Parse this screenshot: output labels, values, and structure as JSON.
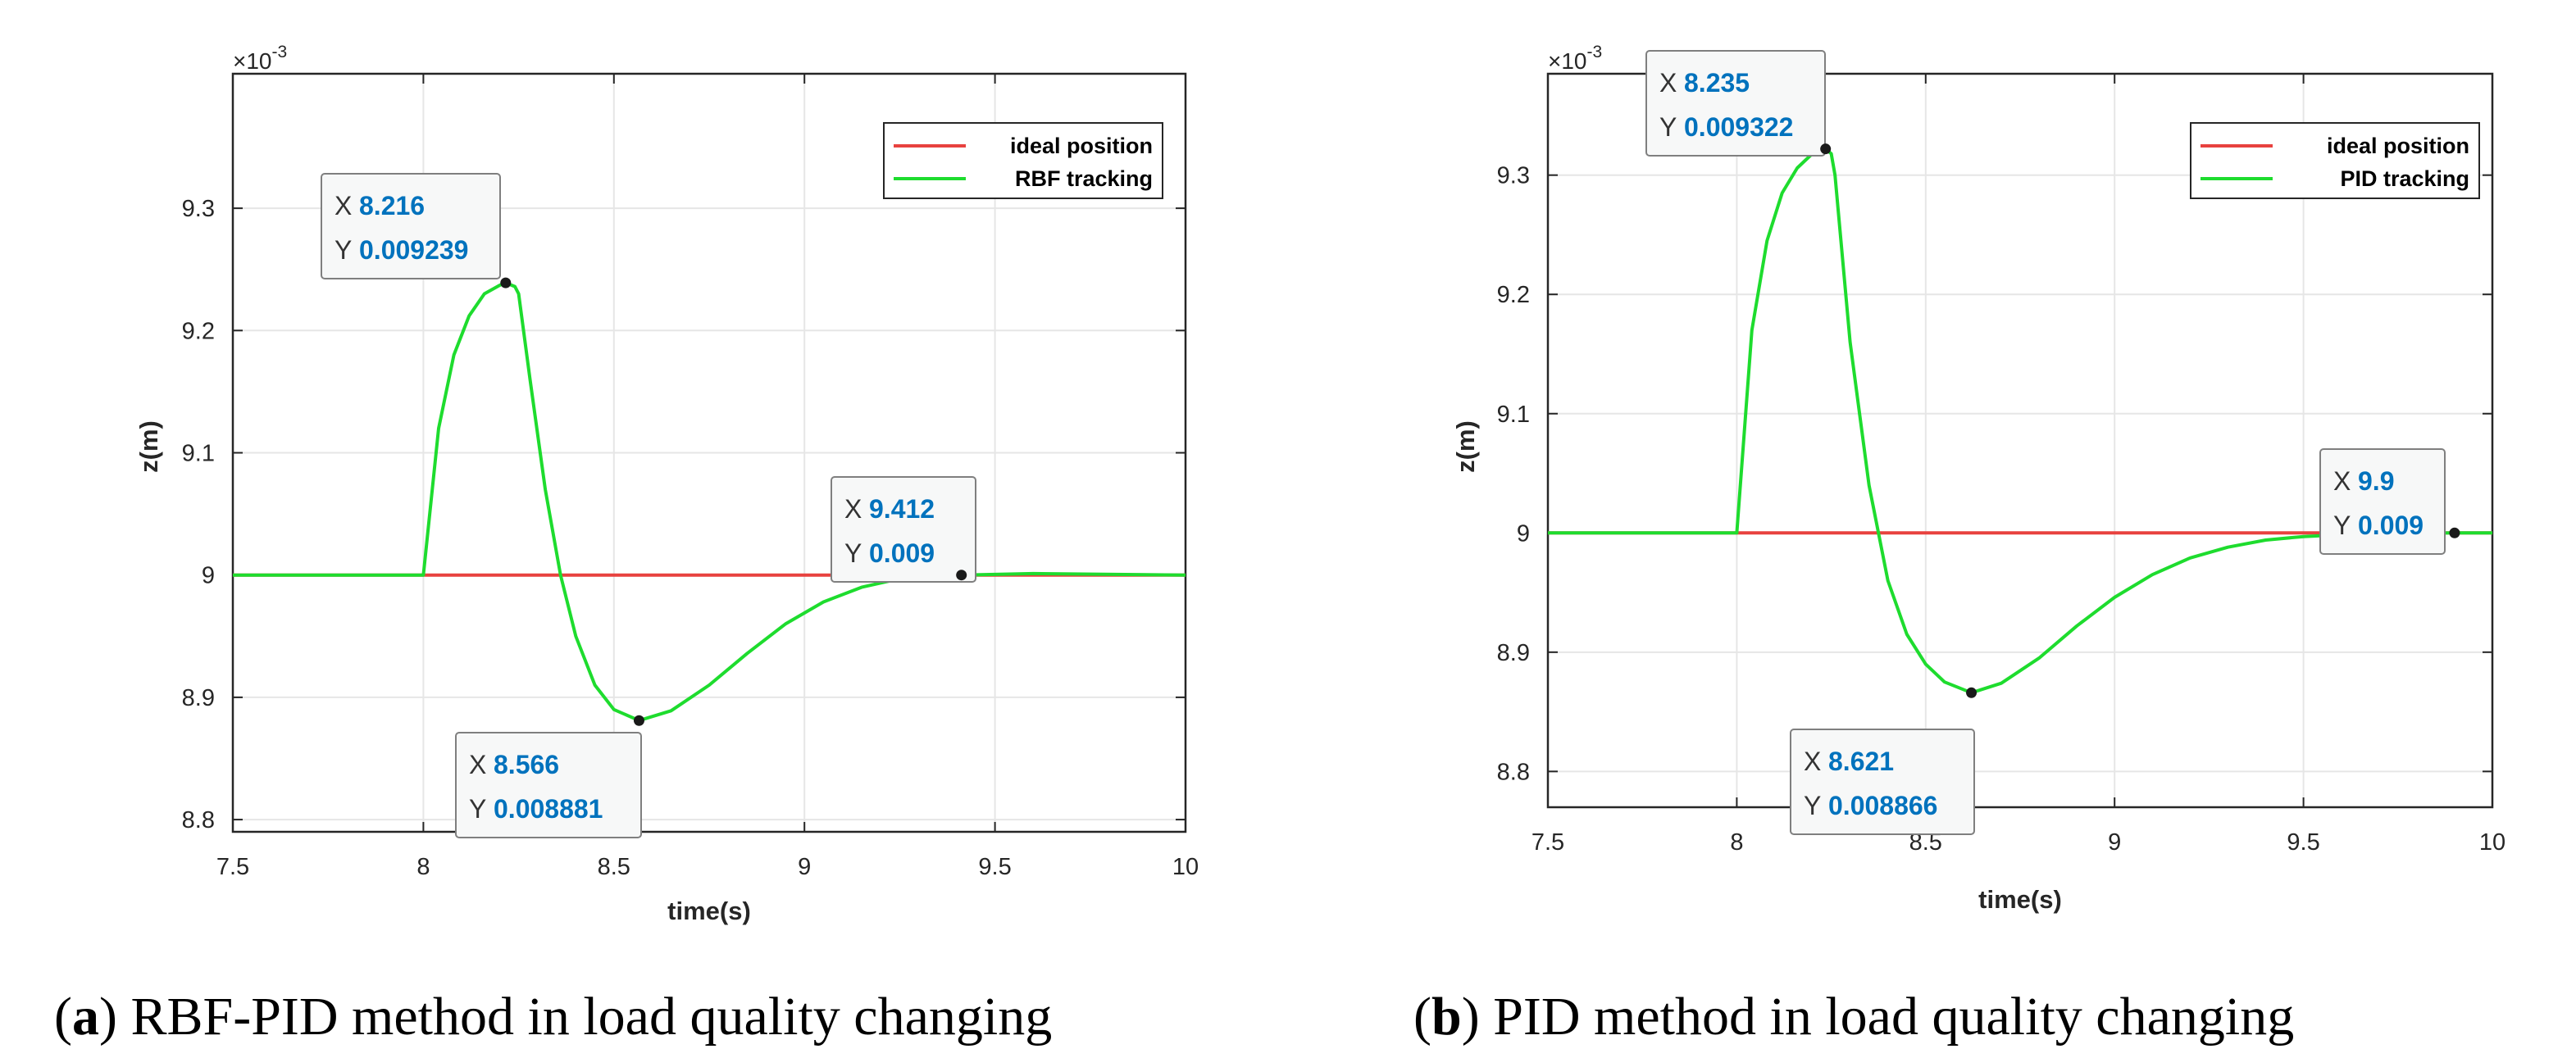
{
  "colors": {
    "ideal": "#e8423f",
    "tracking": "#1edc2e",
    "tip_value": "#0072bd",
    "grid": "#e6e6e6"
  },
  "chart_data": [
    {
      "type": "line",
      "panel": "a",
      "caption_letter": "(a)",
      "caption_text": " RBF-PID method in load quality changing",
      "xlabel": "time(s)",
      "ylabel": "z(m)",
      "exponent_label": "×10-3",
      "xlim": [
        7.5,
        10
      ],
      "ylim": [
        8.79,
        9.41
      ],
      "xticks": [
        7.5,
        8,
        8.5,
        9,
        9.5,
        10
      ],
      "xtick_labels": [
        "7.5",
        "8",
        "8.5",
        "9",
        "9.5",
        "10"
      ],
      "yticks": [
        8.8,
        8.9,
        9.0,
        9.1,
        9.2,
        9.3
      ],
      "ytick_labels": [
        "8.8",
        "8.9",
        "9",
        "9.1",
        "9.2",
        "9.3"
      ],
      "legend": {
        "placement": "top-right",
        "entries": [
          "ideal position",
          "RBF tracking"
        ]
      },
      "series": [
        {
          "name": "ideal position",
          "x": [
            7.5,
            10
          ],
          "y": [
            9.0,
            9.0
          ]
        },
        {
          "name": "RBF tracking",
          "x": [
            7.5,
            8.0,
            8.0,
            8.04,
            8.08,
            8.12,
            8.16,
            8.2,
            8.216,
            8.24,
            8.25,
            8.28,
            8.32,
            8.36,
            8.4,
            8.45,
            8.5,
            8.566,
            8.65,
            8.75,
            8.85,
            8.95,
            9.05,
            9.15,
            9.25,
            9.35,
            9.412,
            9.6,
            10.0
          ],
          "y": [
            9.0,
            9.0,
            9.0,
            9.12,
            9.18,
            9.212,
            9.23,
            9.237,
            9.239,
            9.236,
            9.23,
            9.16,
            9.07,
            9.0,
            8.95,
            8.91,
            8.89,
            8.881,
            8.889,
            8.91,
            8.936,
            8.96,
            8.978,
            8.99,
            8.997,
            8.9995,
            9.0,
            9.0012,
            9.0
          ]
        }
      ],
      "datatips": [
        {
          "x_label": "X",
          "x_value": "8.216",
          "y_label": "Y",
          "y_value": "0.009239",
          "x": 8.216,
          "y": 9.239
        },
        {
          "x_label": "X",
          "x_value": "8.566",
          "y_label": "Y",
          "y_value": "0.008881",
          "x": 8.566,
          "y": 8.881
        },
        {
          "x_label": "X",
          "x_value": "9.412",
          "y_label": "Y",
          "y_value": "0.009",
          "x": 9.412,
          "y": 9.0
        }
      ]
    },
    {
      "type": "line",
      "panel": "b",
      "caption_letter": "(b)",
      "caption_text": " PID method in load quality changing",
      "xlabel": "time(s)",
      "ylabel": "z(m)",
      "exponent_label": "×10-3",
      "xlim": [
        7.5,
        10
      ],
      "ylim": [
        8.77,
        9.385
      ],
      "xticks": [
        7.5,
        8,
        8.5,
        9,
        9.5,
        10
      ],
      "xtick_labels": [
        "7.5",
        "8",
        "8.5",
        "9",
        "9.5",
        "10"
      ],
      "yticks": [
        8.8,
        8.9,
        9.0,
        9.1,
        9.2,
        9.3
      ],
      "ytick_labels": [
        "8.8",
        "8.9",
        "9",
        "9.1",
        "9.2",
        "9.3"
      ],
      "legend": {
        "placement": "top-right",
        "entries": [
          "ideal position",
          "PID tracking"
        ]
      },
      "series": [
        {
          "name": "ideal position",
          "x": [
            7.5,
            10
          ],
          "y": [
            9.0,
            9.0
          ]
        },
        {
          "name": "PID tracking",
          "x": [
            7.5,
            8.0,
            8.0,
            8.04,
            8.08,
            8.12,
            8.16,
            8.2,
            8.235,
            8.25,
            8.26,
            8.3,
            8.35,
            8.4,
            8.45,
            8.5,
            8.55,
            8.621,
            8.7,
            8.8,
            8.9,
            9.0,
            9.1,
            9.2,
            9.3,
            9.4,
            9.5,
            9.6,
            9.7,
            9.8,
            9.9,
            10.0
          ],
          "y": [
            9.0,
            9.0,
            9.0,
            9.17,
            9.245,
            9.285,
            9.306,
            9.318,
            9.322,
            9.318,
            9.3,
            9.16,
            9.04,
            8.96,
            8.915,
            8.89,
            8.875,
            8.866,
            8.874,
            8.895,
            8.922,
            8.946,
            8.965,
            8.979,
            8.988,
            8.994,
            8.997,
            8.9985,
            8.9993,
            8.9998,
            9.0,
            9.0
          ]
        }
      ],
      "datatips": [
        {
          "x_label": "X",
          "x_value": "8.235",
          "y_label": "Y",
          "y_value": "0.009322",
          "x": 8.235,
          "y": 9.322
        },
        {
          "x_label": "X",
          "x_value": "8.621",
          "y_label": "Y",
          "y_value": "0.008866",
          "x": 8.621,
          "y": 8.866
        },
        {
          "x_label": "X",
          "x_value": "9.9",
          "y_label": "Y",
          "y_value": "0.009",
          "x": 9.9,
          "y": 9.0
        }
      ]
    }
  ]
}
